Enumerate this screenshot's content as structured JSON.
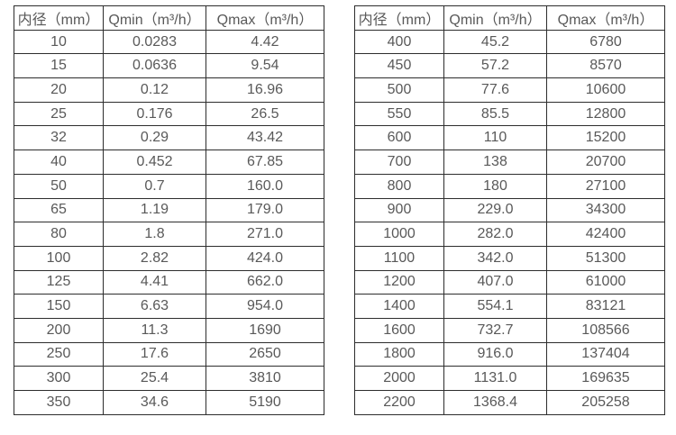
{
  "colors": {
    "border": "#2d2d2d",
    "text": "#595959",
    "background": "#ffffff"
  },
  "left_table": {
    "columns": [
      "内径（mm）",
      "Qmin（m³/h）",
      "Qmax（m³/h）"
    ],
    "rows": [
      [
        "10",
        "0.0283",
        "4.42"
      ],
      [
        "15",
        "0.0636",
        "9.54"
      ],
      [
        "20",
        "0.12",
        "16.96"
      ],
      [
        "25",
        "0.176",
        "26.5"
      ],
      [
        "32",
        "0.29",
        "43.42"
      ],
      [
        "40",
        "0.452",
        "67.85"
      ],
      [
        "50",
        "0.7",
        "160.0"
      ],
      [
        "65",
        "1.19",
        "179.0"
      ],
      [
        "80",
        "1.8",
        "271.0"
      ],
      [
        "100",
        "2.82",
        "424.0"
      ],
      [
        "125",
        "4.41",
        "662.0"
      ],
      [
        "150",
        "6.63",
        "954.0"
      ],
      [
        "200",
        "11.3",
        "1690"
      ],
      [
        "250",
        "17.6",
        "2650"
      ],
      [
        "300",
        "25.4",
        "3810"
      ],
      [
        "350",
        "34.6",
        "5190"
      ]
    ]
  },
  "right_table": {
    "columns": [
      "内径（mm）",
      "Qmin（m³/h）",
      "Qmax（m³/h）"
    ],
    "rows": [
      [
        "400",
        "45.2",
        "6780"
      ],
      [
        "450",
        "57.2",
        "8570"
      ],
      [
        "500",
        "77.6",
        "10600"
      ],
      [
        "550",
        "85.5",
        "12800"
      ],
      [
        "600",
        "110",
        "15200"
      ],
      [
        "700",
        "138",
        "20700"
      ],
      [
        "800",
        "180",
        "27100"
      ],
      [
        "900",
        "229.0",
        "34300"
      ],
      [
        "1000",
        "282.0",
        "42400"
      ],
      [
        "1100",
        "342.0",
        "51300"
      ],
      [
        "1200",
        "407.0",
        "61000"
      ],
      [
        "1400",
        "554.1",
        "83121"
      ],
      [
        "1600",
        "732.7",
        "108566"
      ],
      [
        "1800",
        "916.0",
        "137404"
      ],
      [
        "2000",
        "1131.0",
        "169635"
      ],
      [
        "2200",
        "1368.4",
        "205258"
      ]
    ]
  }
}
